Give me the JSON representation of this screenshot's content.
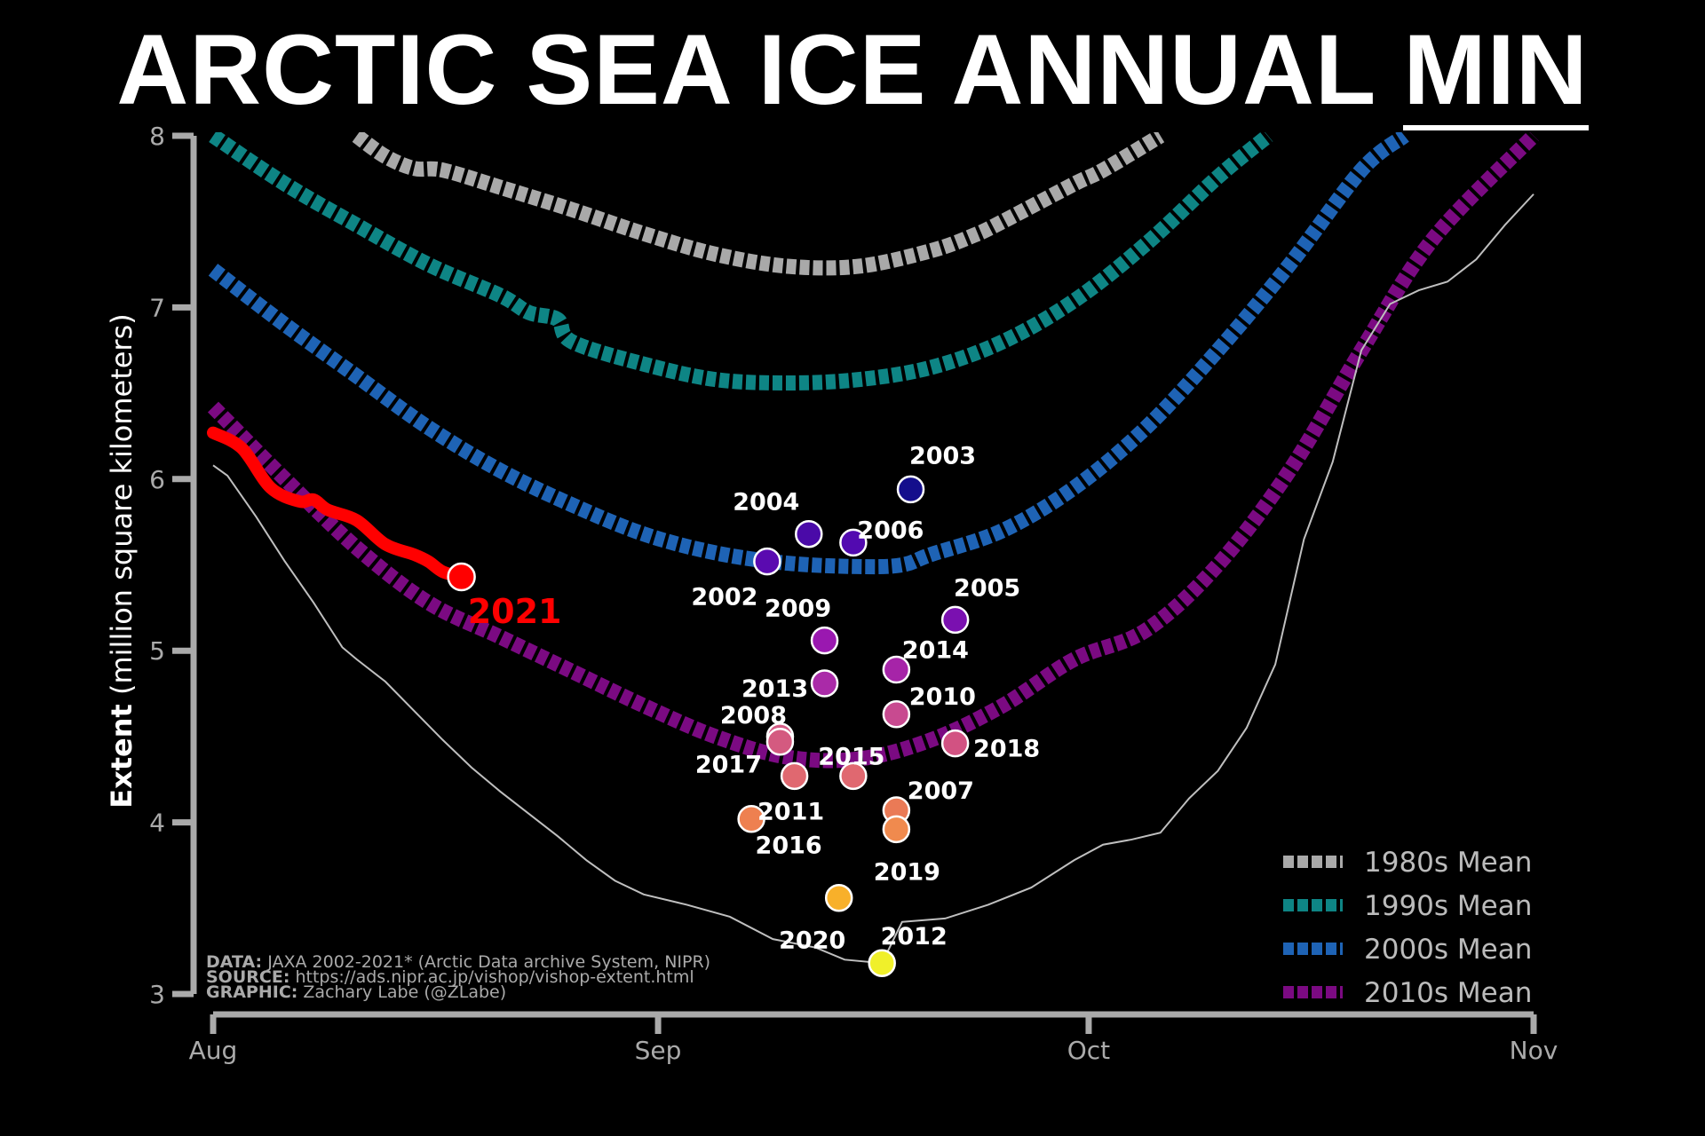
{
  "title": {
    "main": "ARCTIC SEA ICE ANNUAL ",
    "underlined": "MIN"
  },
  "chart_data": {
    "type": "line",
    "title": "ARCTIC SEA ICE ANNUAL MIN",
    "ylabel_bold": "Extent",
    "ylabel_rest": " (million square kilometers)",
    "xlabel": "",
    "ylim": [
      3,
      8
    ],
    "xlim_days": [
      0,
      92
    ],
    "yticks": [
      3,
      4,
      5,
      6,
      7,
      8
    ],
    "xticks": [
      {
        "label": "Aug",
        "day": 0
      },
      {
        "label": "Sep",
        "day": 31
      },
      {
        "label": "Oct",
        "day": 61
      },
      {
        "label": "Nov",
        "day": 92
      }
    ],
    "grid": false,
    "legend_position": "bottom-right",
    "series": [
      {
        "name": "1980s Mean",
        "color": "#a9a9a9",
        "style": "dashed",
        "x": [
          10,
          12,
          14,
          16,
          20,
          25,
          30,
          35,
          40,
          45,
          50,
          53,
          55,
          60,
          62,
          66
        ],
        "y": [
          8.0,
          7.88,
          7.81,
          7.8,
          7.7,
          7.57,
          7.43,
          7.31,
          7.24,
          7.24,
          7.33,
          7.42,
          7.5,
          7.72,
          7.8,
          8.0
        ]
      },
      {
        "name": "1990s Mean",
        "color": "#0e8585",
        "style": "dashed",
        "x": [
          0,
          5,
          10,
          15,
          20,
          22,
          24,
          25,
          30,
          35,
          40,
          45,
          50,
          55,
          60,
          65,
          70,
          73.5
        ],
        "y": [
          8.0,
          7.72,
          7.48,
          7.25,
          7.07,
          6.97,
          6.93,
          6.8,
          6.67,
          6.58,
          6.56,
          6.58,
          6.65,
          6.8,
          7.04,
          7.37,
          7.76,
          8.0
        ]
      },
      {
        "name": "2000s Mean",
        "color": "#1e63b5",
        "style": "dashed",
        "x": [
          0,
          5,
          10,
          15,
          20,
          25,
          30,
          35,
          40,
          45,
          48,
          50,
          55,
          60,
          65,
          70,
          75,
          80,
          83
        ],
        "y": [
          7.22,
          6.9,
          6.6,
          6.3,
          6.05,
          5.85,
          5.68,
          5.57,
          5.51,
          5.49,
          5.5,
          5.56,
          5.7,
          5.95,
          6.3,
          6.75,
          7.25,
          7.8,
          8.0
        ]
      },
      {
        "name": "2010s Mean",
        "color": "#7b0a82",
        "style": "dashed",
        "x": [
          0,
          5,
          10,
          15,
          20,
          25,
          30,
          35,
          40,
          45,
          50,
          55,
          60,
          65,
          70,
          75,
          80,
          85,
          92
        ],
        "y": [
          6.42,
          6.0,
          5.6,
          5.28,
          5.08,
          4.88,
          4.68,
          4.5,
          4.38,
          4.37,
          4.48,
          4.68,
          4.95,
          5.12,
          5.5,
          6.05,
          6.75,
          7.4,
          8.0
        ]
      },
      {
        "name": "2012 daily",
        "color": "#bfbfbf",
        "style": "thin",
        "x": [
          0,
          1,
          3,
          5,
          7,
          9,
          10,
          12,
          14,
          16,
          18,
          20,
          22,
          24,
          26,
          28,
          30,
          33,
          36,
          39,
          42,
          44,
          46.6,
          48,
          51,
          54,
          57,
          60,
          62,
          64,
          66,
          68,
          70,
          72,
          74,
          76,
          78,
          80,
          82,
          84,
          86,
          88,
          90,
          92
        ],
        "y": [
          6.08,
          6.02,
          5.78,
          5.52,
          5.28,
          5.02,
          4.95,
          4.82,
          4.65,
          4.48,
          4.32,
          4.18,
          4.05,
          3.92,
          3.78,
          3.66,
          3.58,
          3.52,
          3.45,
          3.32,
          3.27,
          3.2,
          3.18,
          3.42,
          3.44,
          3.52,
          3.62,
          3.78,
          3.87,
          3.9,
          3.94,
          4.14,
          4.3,
          4.55,
          4.92,
          5.65,
          6.1,
          6.75,
          7.02,
          7.1,
          7.15,
          7.28,
          7.48,
          7.66
        ]
      },
      {
        "name": "2021",
        "color": "#ff0000",
        "style": "thick",
        "x": [
          0,
          2,
          4,
          6,
          7,
          8,
          10,
          12,
          14,
          15,
          16,
          17.3
        ],
        "y": [
          6.27,
          6.18,
          5.95,
          5.87,
          5.88,
          5.82,
          5.76,
          5.62,
          5.56,
          5.52,
          5.46,
          5.43
        ]
      }
    ],
    "annual_minimums": [
      {
        "year": "2002",
        "day": 38.6,
        "value": 5.52,
        "color": "#5a0ab0"
      },
      {
        "year": "2003",
        "day": 48.6,
        "value": 5.94,
        "color": "#140e8c"
      },
      {
        "year": "2004",
        "day": 41.5,
        "value": 5.68,
        "color": "#4a0aa8"
      },
      {
        "year": "2005",
        "day": 51.7,
        "value": 5.18,
        "color": "#7a10b0"
      },
      {
        "year": "2006",
        "day": 44.6,
        "value": 5.63,
        "color": "#520ab0"
      },
      {
        "year": "2007",
        "day": 47.6,
        "value": 4.07,
        "color": "#ea7a56"
      },
      {
        "year": "2008",
        "day": 39.5,
        "value": 4.5,
        "color": "#d45c86"
      },
      {
        "year": "2009",
        "day": 42.6,
        "value": 5.06,
        "color": "#9a18b0"
      },
      {
        "year": "2010",
        "day": 47.6,
        "value": 4.63,
        "color": "#c84a90"
      },
      {
        "year": "2011",
        "day": 40.5,
        "value": 4.27,
        "color": "#e06870"
      },
      {
        "year": "2012",
        "day": 46.6,
        "value": 3.18,
        "color": "#f0f02a"
      },
      {
        "year": "2013",
        "day": 42.6,
        "value": 4.81,
        "color": "#aa2aa8"
      },
      {
        "year": "2014",
        "day": 47.6,
        "value": 4.89,
        "color": "#a624a8"
      },
      {
        "year": "2015",
        "day": 44.6,
        "value": 4.27,
        "color": "#e06870"
      },
      {
        "year": "2016",
        "day": 37.5,
        "value": 4.02,
        "color": "#ee8050"
      },
      {
        "year": "2017",
        "day": 39.5,
        "value": 4.47,
        "color": "#d45a80"
      },
      {
        "year": "2018",
        "day": 51.7,
        "value": 4.46,
        "color": "#d25282"
      },
      {
        "year": "2019",
        "day": 47.6,
        "value": 3.96,
        "color": "#f08a4e"
      },
      {
        "year": "2020",
        "day": 43.6,
        "value": 3.56,
        "color": "#f8b02a"
      }
    ],
    "current": {
      "year": "2021",
      "day": 17.3,
      "value": 5.43,
      "color": "#ff0000"
    }
  },
  "credits": [
    {
      "key": "DATA:",
      "text": " JAXA 2002-2021* (Arctic Data archive System, NIPR)"
    },
    {
      "key": "SOURCE:",
      "text": " https://ads.nipr.ac.jp/vishop/vishop-extent.html"
    },
    {
      "key": "GRAPHIC:",
      "text": " Zachary Labe (@ZLabe)"
    }
  ]
}
